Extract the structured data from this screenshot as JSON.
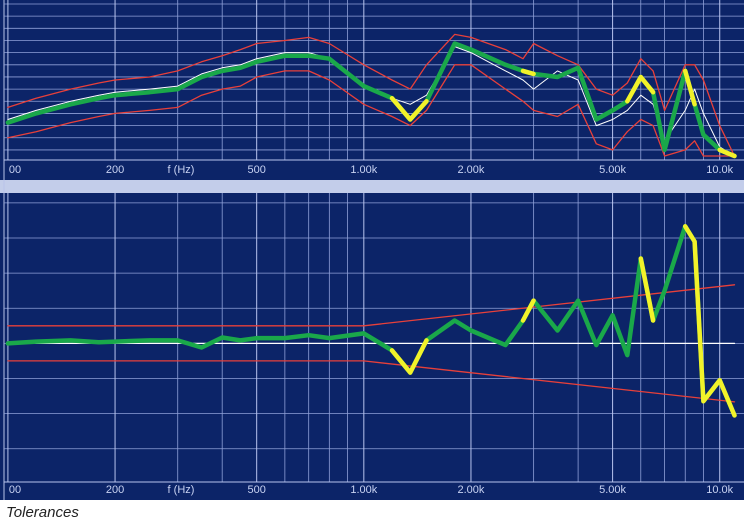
{
  "chart_data": [
    {
      "type": "line",
      "xscale": "log",
      "xlabel": "f (Hz)",
      "xlim": [
        97.5,
        11700
      ],
      "ylim": [
        -50,
        0
      ],
      "xticks": [
        {
          "value": 100,
          "label": "00"
        },
        200,
        500,
        {
          "value": 1000,
          "label": "1.00k"
        },
        {
          "value": 2000,
          "label": "2.00k"
        },
        {
          "value": 5000,
          "label": "5.00k"
        },
        {
          "value": 10000,
          "label": "10.0k"
        }
      ],
      "xminor": [
        300,
        400,
        600,
        700,
        800,
        900,
        3000,
        4000,
        6000,
        7000,
        8000,
        9000
      ],
      "yticks": [
        -48,
        -44,
        -40,
        -36,
        -32,
        -28,
        -24,
        -20,
        -16,
        -12,
        -8,
        -4,
        0
      ],
      "show_ytick_labels": false,
      "grid": true,
      "x": [
        100,
        120,
        150,
        180,
        200,
        250,
        300,
        350,
        400,
        450,
        500,
        600,
        700,
        800,
        1000,
        1200,
        1350,
        1500,
        1800,
        2000,
        2500,
        2800,
        3000,
        3500,
        4000,
        4500,
        5000,
        5500,
        6000,
        6500,
        7000,
        8000,
        8500,
        9000,
        10000,
        11000
      ],
      "series": [
        {
          "color": "#e8403a",
          "width": 1.3,
          "values": [
            -34,
            -31,
            -28,
            -26,
            -25,
            -24,
            -22,
            -19,
            -17,
            -15,
            -13,
            -12,
            -11,
            -13,
            -20,
            -25,
            -28,
            -20,
            -10,
            -11,
            -15,
            -18,
            -13,
            -17,
            -20,
            -28,
            -30,
            -26,
            -18,
            -22,
            -35,
            -20,
            -20,
            -25,
            -40,
            -50
          ]
        },
        {
          "color": "#e8403a",
          "width": 1.3,
          "values": [
            -44,
            -42,
            -39,
            -37,
            -36,
            -35,
            -34,
            -30,
            -28,
            -27,
            -24,
            -22,
            -22,
            -25,
            -33,
            -37,
            -40,
            -35,
            -20,
            -20,
            -28,
            -32,
            -35,
            -37,
            -33,
            -46,
            -48,
            -42,
            -38,
            -40,
            -50,
            -48,
            -45,
            -50,
            -50,
            -50
          ]
        },
        {
          "color": "#ffffff",
          "width": 1,
          "values": [
            -38,
            -35,
            -32,
            -30,
            -29,
            -28,
            -27,
            -23,
            -21,
            -20,
            -18,
            -16,
            -16,
            -18,
            -27,
            -31,
            -33,
            -30,
            -14,
            -16,
            -22,
            -25,
            -28,
            -22,
            -25,
            -40,
            -38,
            -35,
            -30,
            -33,
            -45,
            -35,
            -28,
            -36,
            -47,
            -50
          ]
        },
        {
          "color": "#1aa84a",
          "width": 4.5,
          "values": [
            -39,
            -36,
            -33,
            -31,
            -30,
            -29,
            -28,
            -24,
            -22,
            -21,
            -19,
            -17,
            -17,
            -18,
            -27,
            -31,
            -38,
            -32,
            -13,
            -15,
            -20,
            -22,
            -23,
            -24,
            -21,
            -38,
            -35,
            -32,
            -24,
            -29,
            -48,
            -22,
            -33,
            -43,
            -48,
            -50
          ]
        },
        {
          "color": "#f2f22a",
          "width": 4.5,
          "values": [
            null,
            null,
            null,
            null,
            null,
            null,
            null,
            null,
            null,
            null,
            null,
            null,
            null,
            null,
            null,
            -31,
            -38,
            -32,
            null,
            null,
            null,
            -22,
            -23,
            null,
            null,
            null,
            null,
            -32,
            -24,
            -29,
            null,
            -22,
            -33,
            null,
            -48,
            -50
          ]
        }
      ]
    },
    {
      "type": "line",
      "xscale": "log",
      "xlabel": "f (Hz)",
      "xlim": [
        97.5,
        11700
      ],
      "ylim": [
        -23,
        25
      ],
      "xticks": [
        {
          "value": 100,
          "label": "00"
        },
        200,
        500,
        {
          "value": 1000,
          "label": "1.00k"
        },
        {
          "value": 2000,
          "label": "2.00k"
        },
        {
          "value": 5000,
          "label": "5.00k"
        },
        {
          "value": 10000,
          "label": "10.0k"
        }
      ],
      "xminor": [
        300,
        400,
        600,
        700,
        800,
        900,
        3000,
        4000,
        6000,
        7000,
        8000,
        9000
      ],
      "yticks": [
        -18,
        -12,
        -6,
        0,
        6,
        12,
        18,
        24
      ],
      "show_ytick_labels": false,
      "grid": true,
      "x": [
        100,
        120,
        150,
        180,
        200,
        250,
        300,
        350,
        400,
        450,
        500,
        600,
        700,
        800,
        1000,
        1200,
        1350,
        1500,
        1800,
        2000,
        2500,
        2800,
        3000,
        3500,
        4000,
        4500,
        5000,
        5500,
        6000,
        6500,
        7000,
        8000,
        8500,
        9000,
        10000,
        11000
      ],
      "series": [
        {
          "color": "#ffffff",
          "width": 1.3,
          "x": [
            100,
            11000
          ],
          "values": [
            0,
            0
          ]
        },
        {
          "color": "#e8403a",
          "width": 1.3,
          "x": [
            100,
            1000,
            11000
          ],
          "values": [
            3,
            3,
            10
          ]
        },
        {
          "color": "#e8403a",
          "width": 1.3,
          "x": [
            100,
            1000,
            11000
          ],
          "values": [
            -3,
            -3,
            -10
          ]
        },
        {
          "color": "#1aa84a",
          "width": 4.5,
          "values": [
            0,
            0.3,
            0.5,
            0.2,
            0.3,
            0.5,
            0.5,
            -0.7,
            1,
            0.5,
            0.9,
            0.9,
            1.4,
            0.9,
            1.7,
            -1.2,
            -5,
            0.5,
            3.9,
            2.2,
            -0.3,
            3.9,
            7.3,
            2.2,
            7.3,
            -0.3,
            4.8,
            -2,
            14.5,
            3.9,
            9,
            20,
            17.4,
            -9.9,
            -6.3,
            -12.3
          ]
        },
        {
          "color": "#f2f22a",
          "width": 4.5,
          "values": [
            null,
            null,
            null,
            null,
            null,
            null,
            null,
            null,
            null,
            null,
            null,
            null,
            null,
            null,
            null,
            -1.2,
            -5,
            0.5,
            null,
            null,
            null,
            3.9,
            7.3,
            null,
            null,
            null,
            null,
            null,
            14.5,
            3.9,
            null,
            20,
            17.4,
            -9.9,
            -6.3,
            -12.3
          ]
        }
      ]
    }
  ],
  "caption": "Tolerances"
}
